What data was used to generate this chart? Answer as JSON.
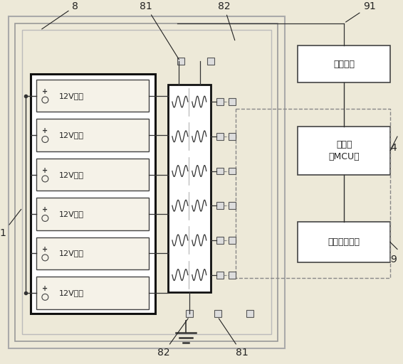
{
  "bg_color": "#ede9d8",
  "lc": "#555555",
  "batteries": [
    "12V电池",
    "12V电池",
    "12V电池",
    "12V电池",
    "12V电池",
    "12V电池"
  ],
  "sample_label": "采样装置",
  "mcu_label": "单片机\n（MCU）",
  "bms_label": "电池管理装置"
}
